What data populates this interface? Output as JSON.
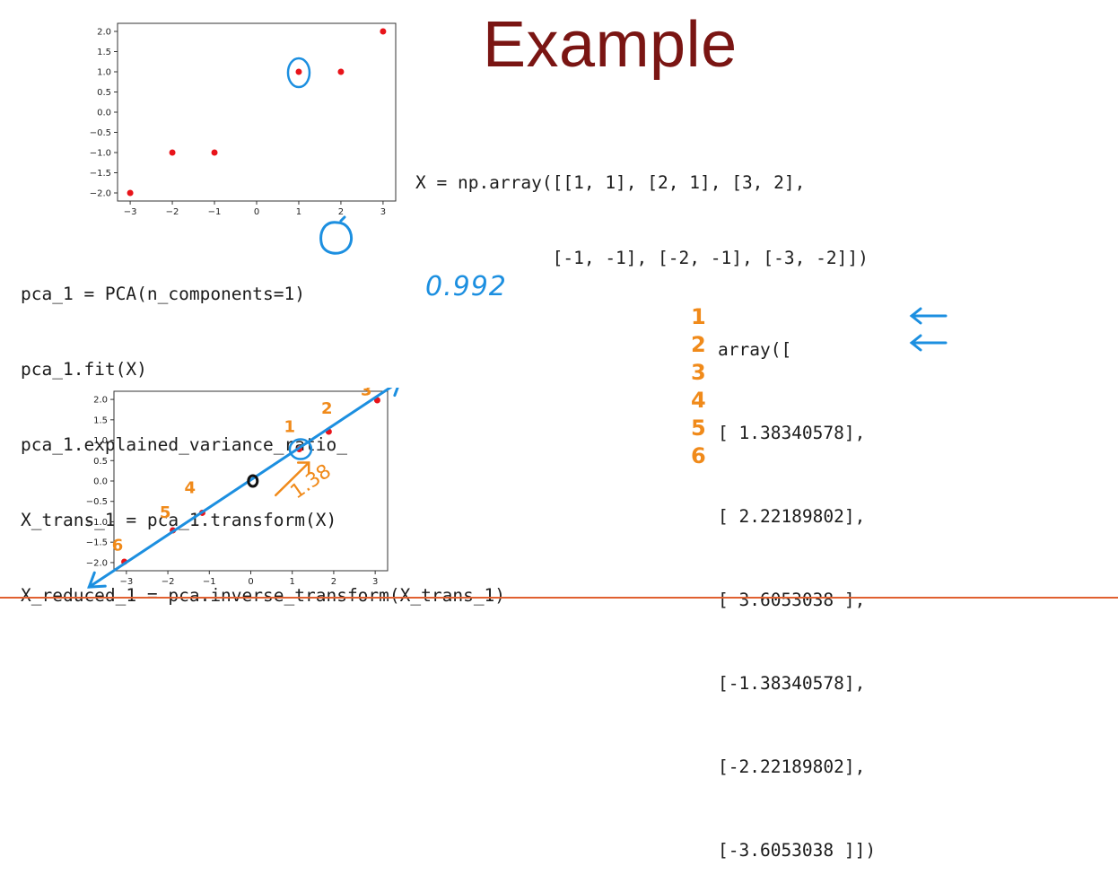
{
  "slide": {
    "title": "Example",
    "x_def_line1": "X = np.array([[1, 1], [2, 1], [3, 2],",
    "x_def_line2": "             [-1, -1], [-2, -1], [-3, -2]])",
    "pca_code": [
      "pca_1 = PCA(n_components=1)",
      "pca_1.fit(X)",
      "pca_1.explained_variance_ratio_",
      "X_trans_1 = pca_1.transform(X)",
      "X_reduced_1 = pca.inverse_transform(X_trans_1)"
    ],
    "array_header": "array([",
    "array_rows": [
      "[ 1.38340578],",
      "[ 2.22189802],",
      "[ 3.6053038 ],",
      "[-1.38340578],",
      "[-2.22189802],",
      "[-3.6053038 ]])"
    ],
    "annotations": {
      "variance_value": "0.992",
      "row_numbers": [
        "1",
        "2",
        "3",
        "4",
        "5",
        "6"
      ],
      "projection_label": "1.38",
      "point_numbers": [
        "1",
        "2",
        "3",
        "4",
        "5",
        "6"
      ],
      "blue_color": "#1c8fe0",
      "orange_color": "#f08a1a"
    }
  },
  "chart_data": [
    {
      "type": "scatter",
      "series": [
        {
          "x": [
            1,
            2,
            3,
            -1,
            -2,
            -3
          ],
          "y": [
            1,
            1,
            2,
            -1,
            -1,
            -2
          ],
          "color": "#e8141a"
        }
      ],
      "xticks": [
        -3,
        -2,
        -1,
        0,
        1,
        2,
        3
      ],
      "yticks": [
        -2.0,
        -1.5,
        -1.0,
        -0.5,
        0.0,
        0.5,
        1.0,
        1.5,
        2.0
      ],
      "xlim": [
        -3.3,
        3.3
      ],
      "ylim": [
        -2.2,
        2.2
      ],
      "grid": false
    },
    {
      "type": "scatter",
      "series": [
        {
          "x": [
            1.17,
            1.88,
            3.05,
            -1.17,
            -1.88,
            -3.05
          ],
          "y": [
            0.78,
            1.21,
            1.98,
            -0.78,
            -1.21,
            -1.98
          ],
          "color": "#e8141a"
        }
      ],
      "xticks": [
        -3,
        -2,
        -1,
        0,
        1,
        2,
        3
      ],
      "yticks": [
        -2.0,
        -1.5,
        -1.0,
        -0.5,
        0.0,
        0.5,
        1.0,
        1.5,
        2.0
      ],
      "xlim": [
        -3.3,
        3.3
      ],
      "ylim": [
        -2.2,
        2.2
      ],
      "grid": false
    }
  ]
}
